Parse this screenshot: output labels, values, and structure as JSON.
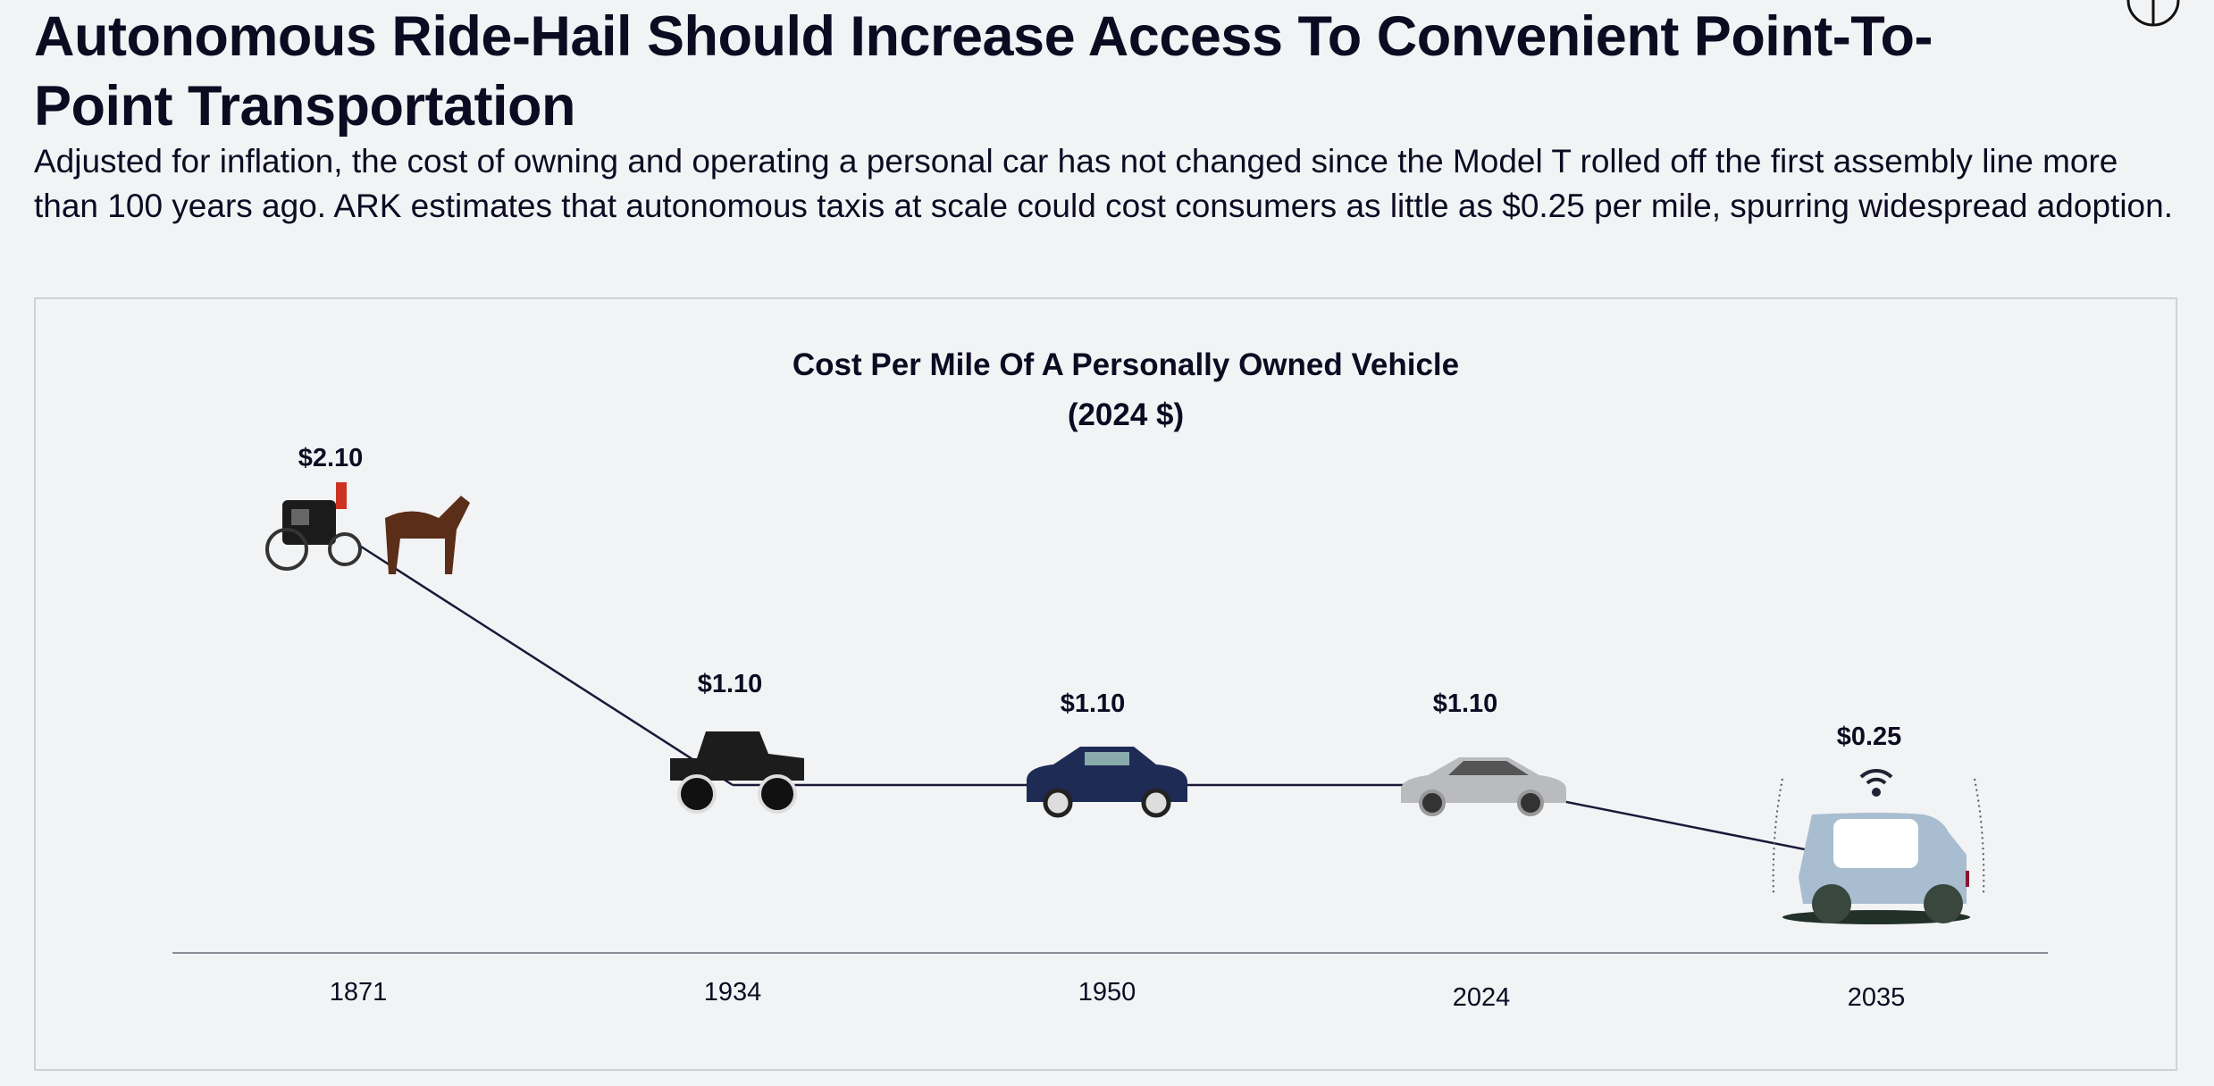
{
  "header": {
    "title": "Autonomous Ride-Hail Should Increase Access To Convenient Point-To-Point Transportation",
    "subtitle": "Adjusted for inflation, the cost of owning and operating a personal car has not changed since the Model T rolled off the first assembly line more than 100 years ago. ARK estimates that autonomous taxis at scale could cost consumers as little as $0.25 per mile, spurring widespread adoption."
  },
  "chart_data": {
    "type": "line",
    "title": "Cost Per Mile Of A Personally Owned Vehicle",
    "subtitle": "(2024 $)",
    "categories": [
      "1871",
      "1934",
      "1950",
      "2024",
      "2035"
    ],
    "values": [
      2.1,
      1.1,
      1.1,
      1.1,
      0.25
    ],
    "data_labels": [
      "$2.10",
      "$1.10",
      "$1.10",
      "$1.10",
      "$0.25"
    ],
    "markers": [
      "horse-carriage-icon",
      "model-a-car-icon",
      "1950s-sedan-icon",
      "modern-sedan-icon",
      "autonomous-van-icon"
    ],
    "xlabel": "",
    "ylabel": "",
    "ylim": [
      0,
      2.5
    ],
    "line_color": "#1a1838",
    "grid": false
  }
}
